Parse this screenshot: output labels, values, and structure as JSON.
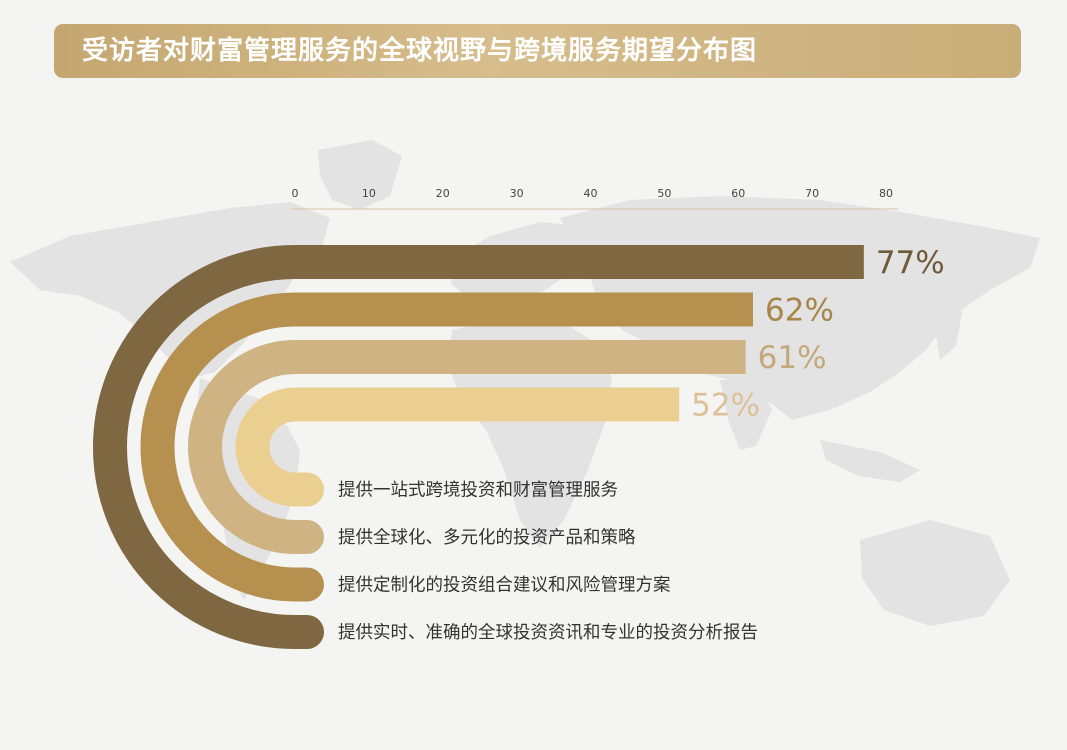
{
  "title": "受访者对财富管理服务的全球视野与跨境服务期望分布图",
  "colors": {
    "title_bar": "#cfb482",
    "map": "#e3e3e4"
  },
  "chart_data": {
    "type": "bar",
    "orientation": "horizontal",
    "xlim": [
      0,
      80
    ],
    "ticks": [
      0,
      10,
      20,
      30,
      40,
      50,
      60,
      70,
      80
    ],
    "tick_position": "top",
    "grid": false,
    "legend": "none",
    "series": [
      {
        "label": "提供实时、准确的全球投资资讯和专业的投资分析报告",
        "value": 77,
        "display": "77%",
        "color": "#7f6741",
        "label_color": "#6f5a3a"
      },
      {
        "label": "提供定制化的投资组合建议和风险管理方案",
        "value": 62,
        "display": "62%",
        "color": "#b5904e",
        "label_color": "#a88548"
      },
      {
        "label": "提供全球化、多元化的投资产品和策略",
        "value": 61,
        "display": "61%",
        "color": "#cfb383",
        "label_color": "#c4a878"
      },
      {
        "label": "提供一站式跨境投资和财富管理服务",
        "value": 52,
        "display": "52%",
        "color": "#ebcf90",
        "label_color": "#dcc196"
      }
    ]
  }
}
